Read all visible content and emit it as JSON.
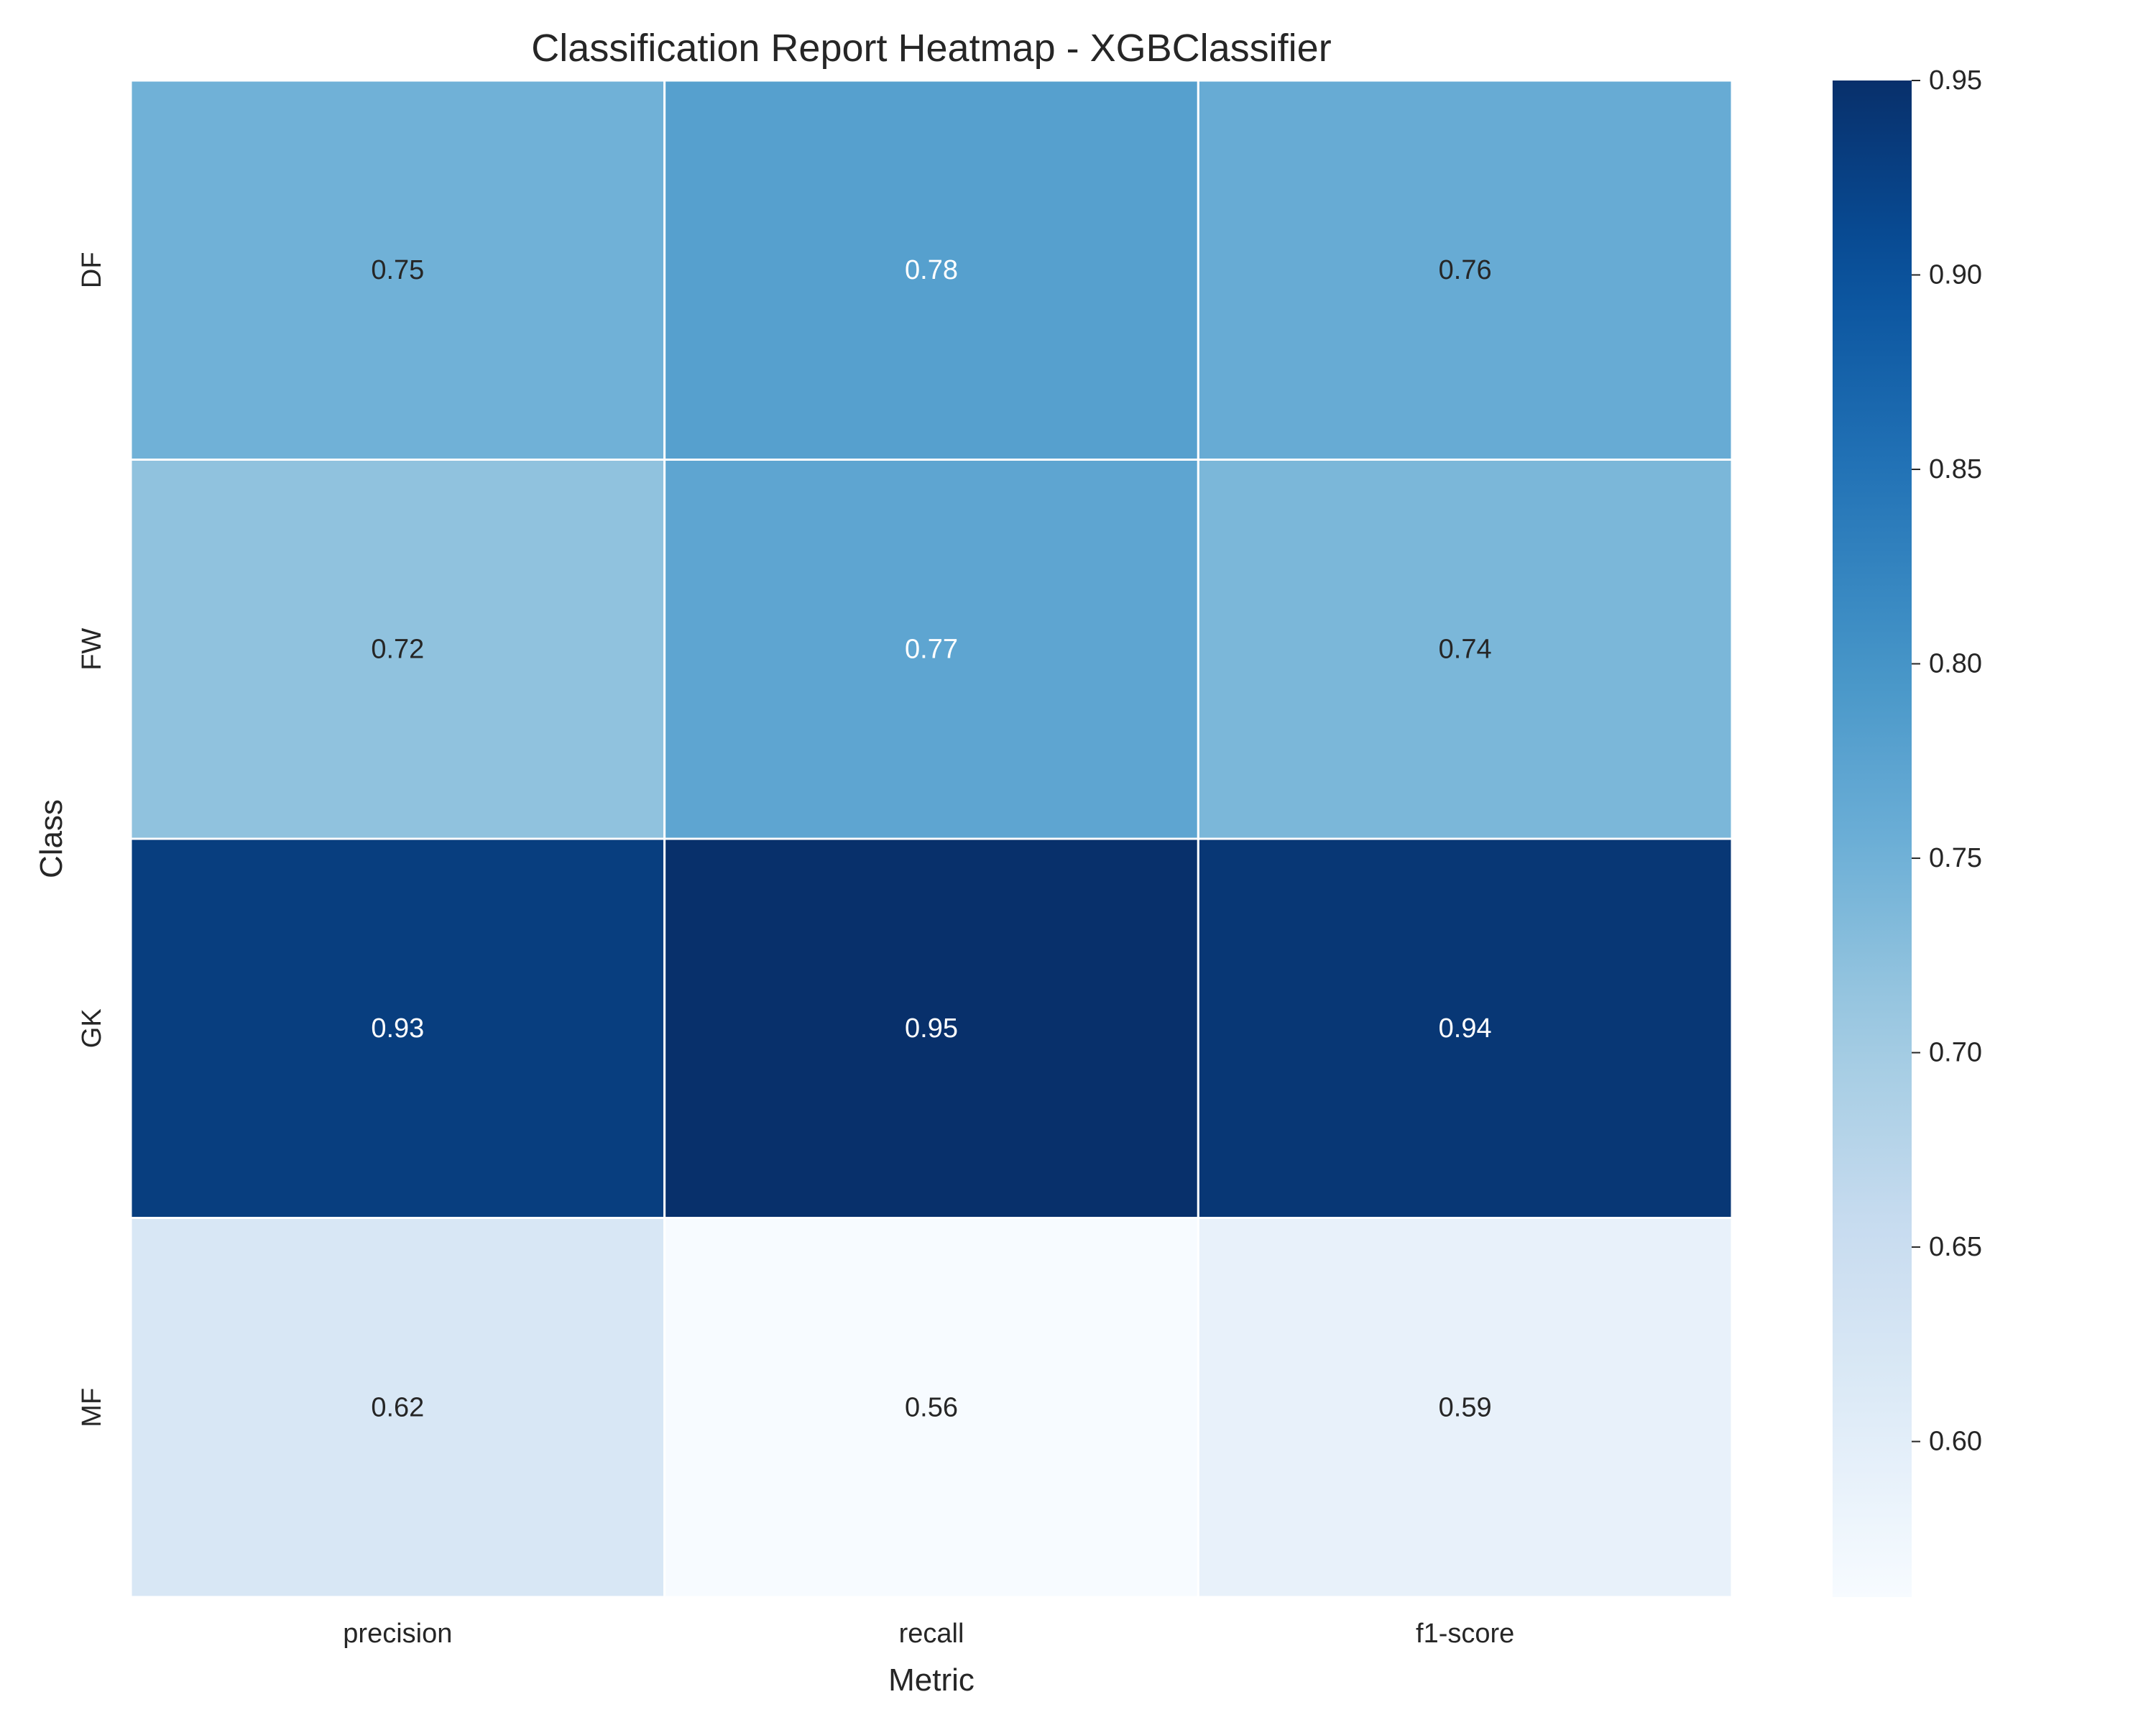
{
  "chart_data": {
    "type": "heatmap",
    "title": "Classification Report Heatmap - XGBClassifier",
    "xlabel": "Metric",
    "ylabel": "Class",
    "x_categories": [
      "precision",
      "recall",
      "f1-score"
    ],
    "y_categories": [
      "DF",
      "FW",
      "GK",
      "MF"
    ],
    "values": [
      [
        0.75,
        0.78,
        0.76
      ],
      [
        0.72,
        0.77,
        0.74
      ],
      [
        0.93,
        0.95,
        0.94
      ],
      [
        0.62,
        0.56,
        0.59
      ]
    ],
    "value_labels": [
      [
        "0.75",
        "0.78",
        "0.76"
      ],
      [
        "0.72",
        "0.77",
        "0.74"
      ],
      [
        "0.93",
        "0.95",
        "0.94"
      ],
      [
        "0.62",
        "0.56",
        "0.59"
      ]
    ],
    "colormap": "Blues",
    "colorbar": {
      "min": 0.56,
      "max": 0.95,
      "ticks": [
        0.6,
        0.65,
        0.7,
        0.75,
        0.8,
        0.85,
        0.9,
        0.95
      ],
      "tick_labels": [
        "0.60",
        "0.65",
        "0.70",
        "0.75",
        "0.80",
        "0.85",
        "0.90",
        "0.95"
      ]
    },
    "grid": false
  }
}
